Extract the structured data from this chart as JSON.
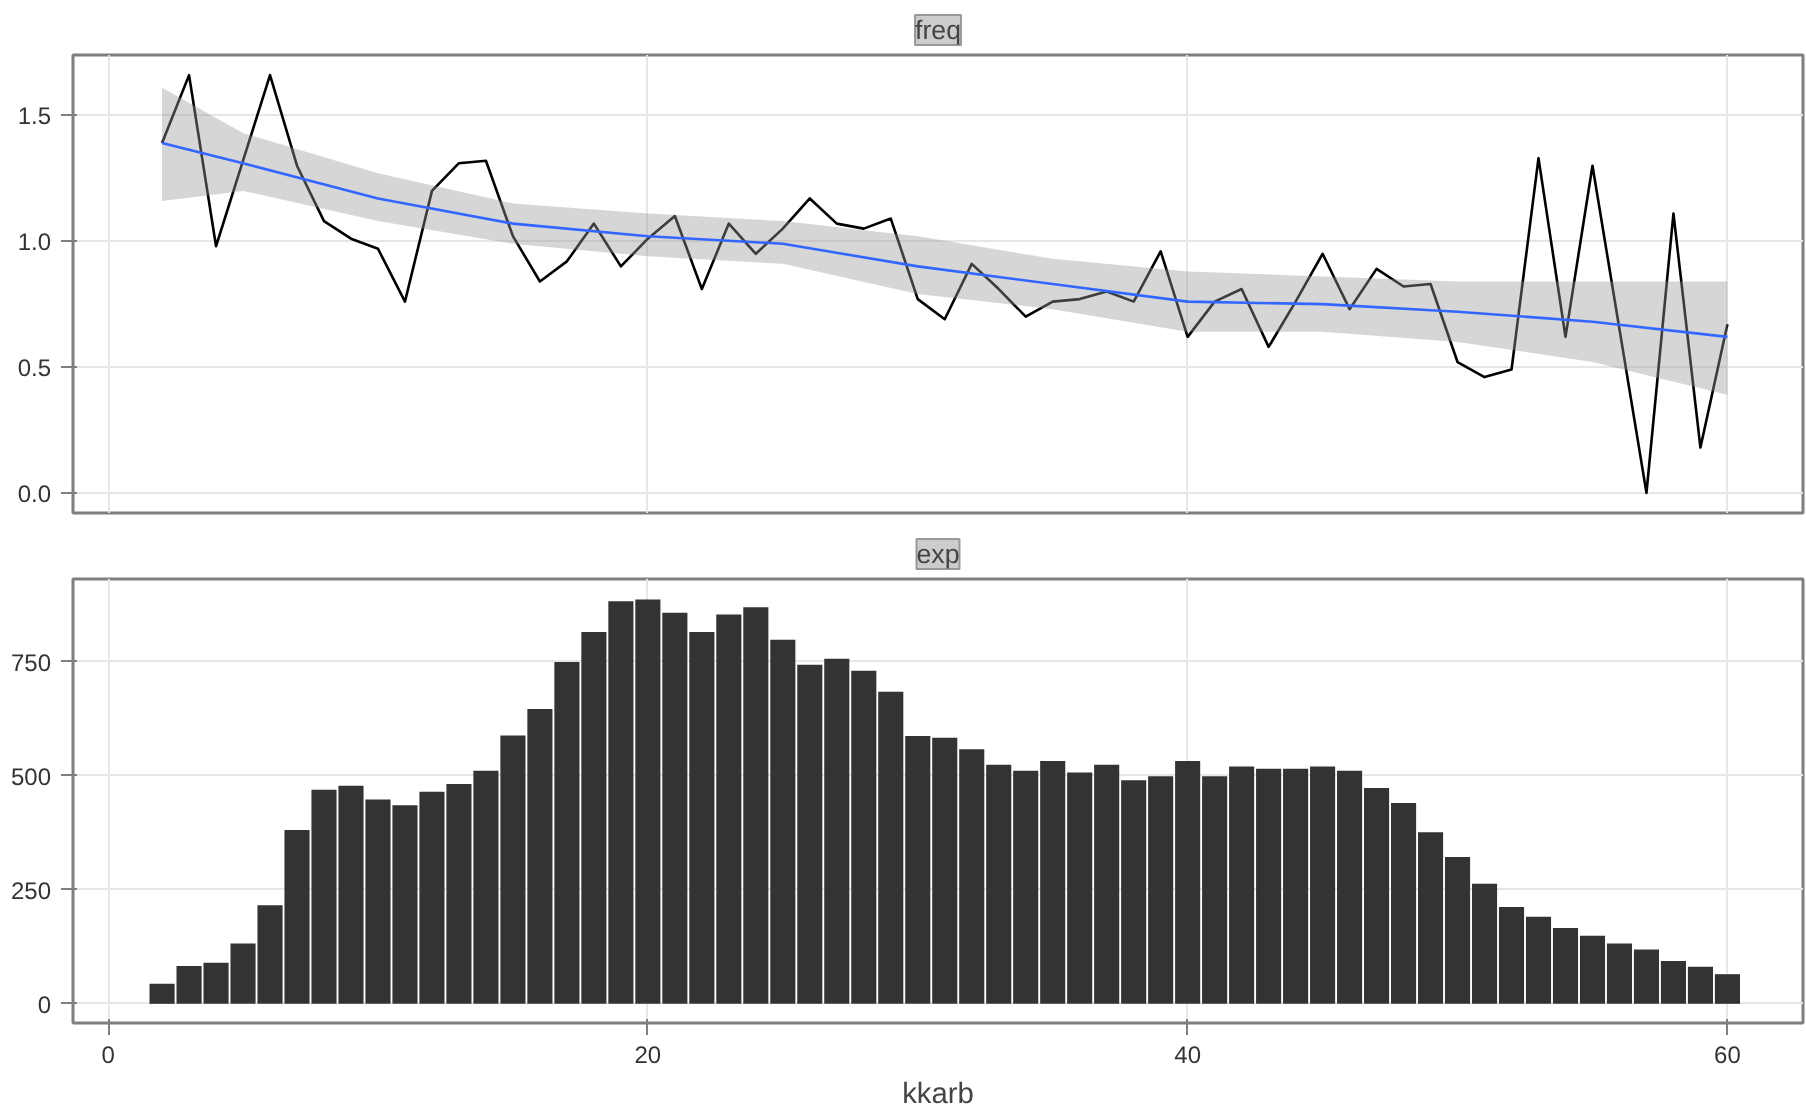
{
  "chart_data": [
    {
      "type": "line",
      "title": "freq",
      "x": [
        2,
        3,
        4,
        5,
        6,
        7,
        8,
        9,
        10,
        11,
        12,
        13,
        14,
        15,
        16,
        17,
        18,
        19,
        20,
        21,
        22,
        23,
        24,
        25,
        26,
        27,
        28,
        29,
        30,
        31,
        32,
        33,
        34,
        35,
        36,
        37,
        38,
        39,
        40,
        41,
        42,
        43,
        44,
        45,
        46,
        47,
        48,
        49,
        50,
        51,
        52,
        53,
        54,
        55,
        56,
        57,
        58,
        59,
        60
      ],
      "series": [
        {
          "color": "#000000",
          "values": [
            1.39,
            1.66,
            0.98,
            1.32,
            1.66,
            1.3,
            1.08,
            1.01,
            0.97,
            0.76,
            1.2,
            1.31,
            1.32,
            1.02,
            0.84,
            0.92,
            1.07,
            0.9,
            1.01,
            1.1,
            0.81,
            1.07,
            0.95,
            1.05,
            1.17,
            1.07,
            1.05,
            1.09,
            0.77,
            0.69,
            0.91,
            0.81,
            0.7,
            0.76,
            0.77,
            0.8,
            0.76,
            0.96,
            0.62,
            0.76,
            0.81,
            0.58,
            0.76,
            0.95,
            0.73,
            0.89,
            0.82,
            0.83,
            0.52,
            0.46,
            0.49,
            1.33,
            0.62,
            1.3,
            0.65,
            0.0,
            1.11,
            0.18,
            0.67
          ]
        },
        {
          "color": "#3366ff",
          "x": [
            2,
            5,
            10,
            15,
            20,
            25,
            30,
            35,
            40,
            45,
            50,
            55,
            60
          ],
          "values": [
            1.39,
            1.31,
            1.17,
            1.07,
            1.02,
            0.99,
            0.9,
            0.83,
            0.76,
            0.75,
            0.72,
            0.68,
            0.62
          ],
          "lower": [
            1.16,
            1.2,
            1.08,
            0.99,
            0.94,
            0.91,
            0.79,
            0.73,
            0.64,
            0.64,
            0.6,
            0.52,
            0.39
          ],
          "upper": [
            1.61,
            1.43,
            1.27,
            1.15,
            1.11,
            1.08,
            1.02,
            0.93,
            0.88,
            0.86,
            0.84,
            0.84,
            0.84
          ]
        }
      ],
      "xlim": [
        -1.3,
        62.8
      ],
      "xticks": [
        0,
        20,
        40,
        60
      ],
      "ylim": [
        -0.08,
        1.74
      ],
      "yticks": [
        {
          "value": 0,
          "label": "0.0"
        },
        0.5,
        {
          "value": 1,
          "label": "1.0"
        },
        1.5
      ],
      "grid": true,
      "tick_labels": "y",
      "marker": "none",
      "line_style": "solid"
    },
    {
      "type": "bar",
      "title": "exp",
      "xlabel": "kkarb",
      "x": [
        2,
        3,
        4,
        5,
        6,
        7,
        8,
        9,
        10,
        11,
        12,
        13,
        14,
        15,
        16,
        17,
        18,
        19,
        20,
        21,
        22,
        23,
        24,
        25,
        26,
        27,
        28,
        29,
        30,
        31,
        32,
        33,
        34,
        35,
        36,
        37,
        38,
        39,
        40,
        41,
        42,
        43,
        44,
        45,
        46,
        47,
        48,
        49,
        50,
        51,
        52,
        53,
        54,
        55,
        56,
        57,
        58,
        59,
        60
      ],
      "series": [
        {
          "color": "#333333",
          "values": [
            44,
            83,
            90,
            132,
            216,
            381,
            469,
            478,
            448,
            435,
            465,
            482,
            511,
            588,
            646,
            749,
            815,
            882,
            886,
            857,
            815,
            853,
            869,
            798,
            743,
            756,
            730,
            684,
            587,
            583,
            558,
            524,
            511,
            532,
            507,
            524,
            490,
            499,
            532,
            499,
            520,
            515,
            515,
            520,
            511,
            473,
            440,
            376,
            322,
            263,
            212,
            191,
            166,
            149,
            132,
            119,
            94,
            81,
            65
          ]
        }
      ],
      "xlim": [
        -1.3,
        62.8
      ],
      "xticks": [
        0,
        20,
        40,
        60
      ],
      "ylim": [
        -42,
        931
      ],
      "yticks": [
        0,
        250,
        500,
        750
      ],
      "grid": true
    }
  ]
}
